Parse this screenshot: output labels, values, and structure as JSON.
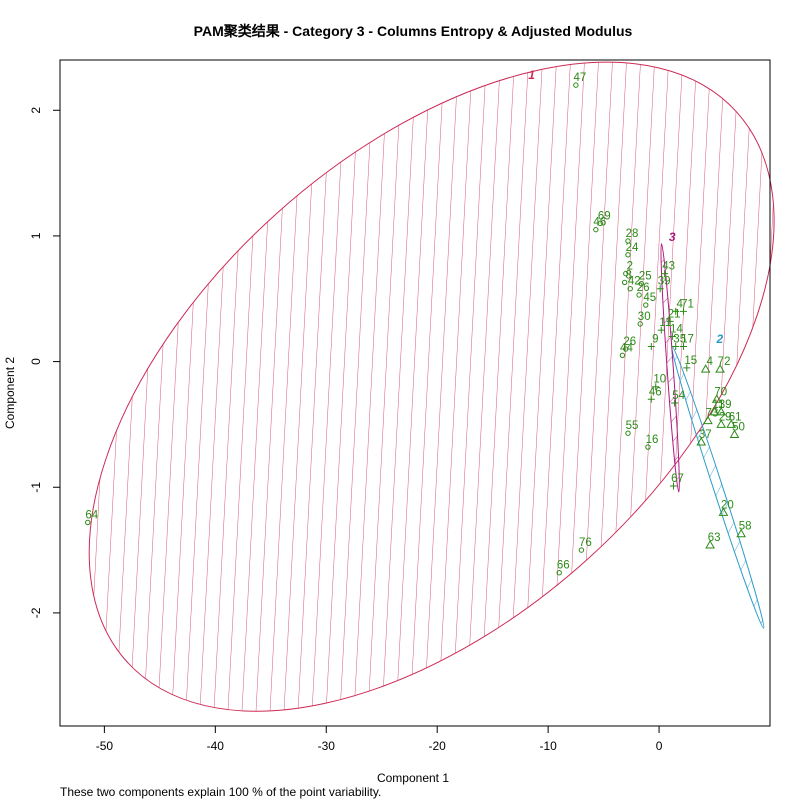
{
  "chart_data": {
    "type": "scatter",
    "title": "PAM聚类结果 - Category  3  - Columns  Entropy  &  Adjusted Modulus",
    "xlabel": "Component 1",
    "ylabel": "Component 2",
    "subtitle": "These two components explain 100 % of the point variability.",
    "xlim": [
      -54,
      10
    ],
    "ylim": [
      -2.9,
      2.4
    ],
    "x_ticks": [
      -50,
      -40,
      -30,
      -20,
      -10,
      0
    ],
    "y_ticks": [
      -2,
      -1,
      0,
      1,
      2
    ],
    "grid": false,
    "colors": {
      "points": "#2b8a17",
      "cluster_1": "#cc2a55",
      "cluster_2": "#2a9bc8",
      "cluster_3": "#b0167f"
    },
    "clusters": [
      {
        "id": "1",
        "label": "1",
        "color": "#cc2a55",
        "center": [
          -20.5,
          -0.2
        ],
        "semi_axes": [
          37,
          1.85
        ],
        "tilt_deg": 42,
        "hatch": "#cc2a55"
      },
      {
        "id": "2",
        "label": "2",
        "color": "#2a9bc8",
        "center": [
          5.3,
          -1.0
        ],
        "semi_axes": [
          0.42,
          1.18
        ],
        "tilt_deg": 18,
        "hatch": "#2a9bc8"
      },
      {
        "id": "3",
        "label": "3",
        "color": "#b0167f",
        "center": [
          1.0,
          -0.05
        ],
        "semi_axes": [
          0.28,
          0.99
        ],
        "tilt_deg": 4,
        "hatch": "#b0167f"
      }
    ],
    "points": [
      {
        "label": "47",
        "x": -7.5,
        "y": 2.2,
        "cluster": "1"
      },
      {
        "label": "69",
        "x": -5.3,
        "y": 1.1,
        "cluster": "1"
      },
      {
        "label": "46",
        "x": -5.7,
        "y": 1.05,
        "cluster": "1"
      },
      {
        "label": "28",
        "x": -2.8,
        "y": 0.96,
        "cluster": "1"
      },
      {
        "label": "24",
        "x": -2.8,
        "y": 0.85,
        "cluster": "1"
      },
      {
        "label": "2",
        "x": -3.0,
        "y": 0.7,
        "cluster": "1"
      },
      {
        "label": "8",
        "x": -3.1,
        "y": 0.63,
        "cluster": "1"
      },
      {
        "label": "25",
        "x": -1.6,
        "y": 0.62,
        "cluster": "1"
      },
      {
        "label": "42",
        "x": -2.6,
        "y": 0.58,
        "cluster": "1"
      },
      {
        "label": "26",
        "x": -1.8,
        "y": 0.53,
        "cluster": "1"
      },
      {
        "label": "45",
        "x": -1.2,
        "y": 0.45,
        "cluster": "1"
      },
      {
        "label": "30",
        "x": -1.7,
        "y": 0.3,
        "cluster": "1"
      },
      {
        "label": "26",
        "x": -3.0,
        "y": 0.1,
        "cluster": "1"
      },
      {
        "label": "44",
        "x": -3.3,
        "y": 0.05,
        "cluster": "1"
      },
      {
        "label": "55",
        "x": -2.8,
        "y": -0.57,
        "cluster": "1"
      },
      {
        "label": "16",
        "x": -1.0,
        "y": -0.68,
        "cluster": "1"
      },
      {
        "label": "64",
        "x": -51.5,
        "y": -1.28,
        "cluster": "1"
      },
      {
        "label": "76",
        "x": -7.0,
        "y": -1.5,
        "cluster": "1"
      },
      {
        "label": "66",
        "x": -9.0,
        "y": -1.68,
        "cluster": "1"
      },
      {
        "label": "43",
        "x": 0.5,
        "y": 0.7,
        "cluster": "3"
      },
      {
        "label": "39",
        "x": 0.1,
        "y": 0.58,
        "cluster": "3"
      },
      {
        "label": "4",
        "x": 1.5,
        "y": 0.4,
        "cluster": "3"
      },
      {
        "label": "71",
        "x": 2.2,
        "y": 0.4,
        "cluster": "3"
      },
      {
        "label": "21",
        "x": 1.0,
        "y": 0.32,
        "cluster": "3"
      },
      {
        "label": "11",
        "x": 0.2,
        "y": 0.25,
        "cluster": "3"
      },
      {
        "label": "14",
        "x": 1.2,
        "y": 0.2,
        "cluster": "3"
      },
      {
        "label": "35",
        "x": 1.5,
        "y": 0.12,
        "cluster": "3"
      },
      {
        "label": "17",
        "x": 2.2,
        "y": 0.12,
        "cluster": "3"
      },
      {
        "label": "9",
        "x": -0.7,
        "y": 0.12,
        "cluster": "3"
      },
      {
        "label": "10",
        "x": -0.3,
        "y": -0.2,
        "cluster": "3"
      },
      {
        "label": "46",
        "x": -0.7,
        "y": -0.3,
        "cluster": "3"
      },
      {
        "label": "15",
        "x": 2.5,
        "y": -0.05,
        "cluster": "3"
      },
      {
        "label": "54",
        "x": 1.4,
        "y": -0.33,
        "cluster": "3"
      },
      {
        "label": "67",
        "x": 1.3,
        "y": -0.99,
        "cluster": "3"
      },
      {
        "label": "72",
        "x": 5.5,
        "y": -0.06,
        "cluster": "2"
      },
      {
        "label": "4",
        "x": 4.2,
        "y": -0.06,
        "cluster": "2"
      },
      {
        "label": "70",
        "x": 5.2,
        "y": -0.3,
        "cluster": "2"
      },
      {
        "label": "11",
        "x": 5.0,
        "y": -0.4,
        "cluster": "2"
      },
      {
        "label": "39",
        "x": 5.6,
        "y": -0.4,
        "cluster": "2"
      },
      {
        "label": "29",
        "x": 5.6,
        "y": -0.5,
        "cluster": "2"
      },
      {
        "label": "61",
        "x": 6.5,
        "y": -0.5,
        "cluster": "2"
      },
      {
        "label": "50",
        "x": 6.8,
        "y": -0.58,
        "cluster": "2"
      },
      {
        "label": "73",
        "x": 4.4,
        "y": -0.47,
        "cluster": "2"
      },
      {
        "label": "37",
        "x": 3.8,
        "y": -0.64,
        "cluster": "2"
      },
      {
        "label": "20",
        "x": 5.8,
        "y": -1.2,
        "cluster": "2"
      },
      {
        "label": "58",
        "x": 7.4,
        "y": -1.37,
        "cluster": "2"
      },
      {
        "label": "63",
        "x": 4.6,
        "y": -1.46,
        "cluster": "2"
      }
    ]
  }
}
